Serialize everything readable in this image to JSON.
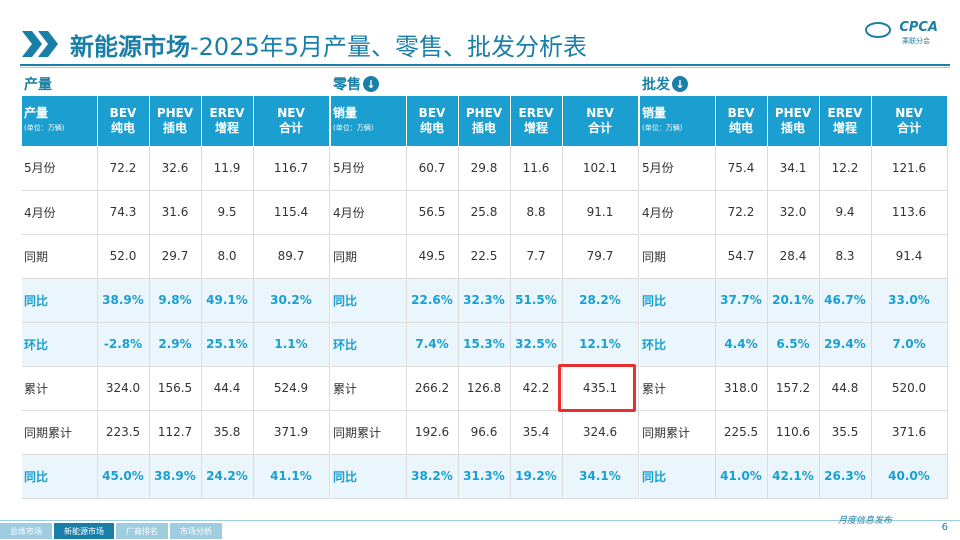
{
  "title": {
    "bold": "新能源市场",
    "rest": "-2025年5月产量、零售、批发分析表"
  },
  "logo": {
    "text": "CPCA",
    "sub": "乘联分会"
  },
  "sections": [
    {
      "label": "产量",
      "has_arrow": false,
      "header_first": "产量",
      "header_unit": "(单位：万辆)",
      "cols": [
        [
          "BEV",
          "纯电"
        ],
        [
          "PHEV",
          "插电"
        ],
        [
          "EREV",
          "增程"
        ],
        [
          "NEV",
          "合计"
        ]
      ],
      "rows": [
        {
          "label": "5月份",
          "values": [
            "72.2",
            "32.6",
            "11.9",
            "116.7"
          ],
          "pct": false
        },
        {
          "label": "4月份",
          "values": [
            "74.3",
            "31.6",
            "9.5",
            "115.4"
          ],
          "pct": false
        },
        {
          "label": "同期",
          "values": [
            "52.0",
            "29.7",
            "8.0",
            "89.7"
          ],
          "pct": false
        },
        {
          "label": "同比",
          "values": [
            "38.9%",
            "9.8%",
            "49.1%",
            "30.2%"
          ],
          "pct": true
        },
        {
          "label": "环比",
          "values": [
            "-2.8%",
            "2.9%",
            "25.1%",
            "1.1%"
          ],
          "pct": true
        },
        {
          "label": "累计",
          "values": [
            "324.0",
            "156.5",
            "44.4",
            "524.9"
          ],
          "pct": false
        },
        {
          "label": "同期累计",
          "values": [
            "223.5",
            "112.7",
            "35.8",
            "371.9"
          ],
          "pct": false
        },
        {
          "label": "同比",
          "values": [
            "45.0%",
            "38.9%",
            "24.2%",
            "41.1%"
          ],
          "pct": true
        }
      ]
    },
    {
      "label": "零售",
      "has_arrow": true,
      "header_first": "销量",
      "header_unit": "(单位：万辆)",
      "cols": [
        [
          "BEV",
          "纯电"
        ],
        [
          "PHEV",
          "插电"
        ],
        [
          "EREV",
          "增程"
        ],
        [
          "NEV",
          "合计"
        ]
      ],
      "rows": [
        {
          "label": "5月份",
          "values": [
            "60.7",
            "29.8",
            "11.6",
            "102.1"
          ],
          "pct": false
        },
        {
          "label": "4月份",
          "values": [
            "56.5",
            "25.8",
            "8.8",
            "91.1"
          ],
          "pct": false
        },
        {
          "label": "同期",
          "values": [
            "49.5",
            "22.5",
            "7.7",
            "79.7"
          ],
          "pct": false
        },
        {
          "label": "同比",
          "values": [
            "22.6%",
            "32.3%",
            "51.5%",
            "28.2%"
          ],
          "pct": true
        },
        {
          "label": "环比",
          "values": [
            "7.4%",
            "15.3%",
            "32.5%",
            "12.1%"
          ],
          "pct": true
        },
        {
          "label": "累计",
          "values": [
            "266.2",
            "126.8",
            "42.2",
            "435.1"
          ],
          "pct": false
        },
        {
          "label": "同期累计",
          "values": [
            "192.6",
            "96.6",
            "35.4",
            "324.6"
          ],
          "pct": false
        },
        {
          "label": "同比",
          "values": [
            "38.2%",
            "31.3%",
            "19.2%",
            "34.1%"
          ],
          "pct": true
        }
      ]
    },
    {
      "label": "批发",
      "has_arrow": true,
      "header_first": "销量",
      "header_unit": "(单位：万辆)",
      "cols": [
        [
          "BEV",
          "纯电"
        ],
        [
          "PHEV",
          "插电"
        ],
        [
          "EREV",
          "增程"
        ],
        [
          "NEV",
          "合计"
        ]
      ],
      "rows": [
        {
          "label": "5月份",
          "values": [
            "75.4",
            "34.1",
            "12.2",
            "121.6"
          ],
          "pct": false
        },
        {
          "label": "4月份",
          "values": [
            "72.2",
            "32.0",
            "9.4",
            "113.6"
          ],
          "pct": false
        },
        {
          "label": "同期",
          "values": [
            "54.7",
            "28.4",
            "8.3",
            "91.4"
          ],
          "pct": false
        },
        {
          "label": "同比",
          "values": [
            "37.7%",
            "20.1%",
            "46.7%",
            "33.0%"
          ],
          "pct": true
        },
        {
          "label": "环比",
          "values": [
            "4.4%",
            "6.5%",
            "29.4%",
            "7.0%"
          ],
          "pct": true
        },
        {
          "label": "累计",
          "values": [
            "318.0",
            "157.2",
            "44.8",
            "520.0"
          ],
          "pct": false
        },
        {
          "label": "同期累计",
          "values": [
            "225.5",
            "110.6",
            "35.5",
            "371.6"
          ],
          "pct": false
        },
        {
          "label": "同比",
          "values": [
            "41.0%",
            "42.1%",
            "26.3%",
            "40.0%"
          ],
          "pct": true
        }
      ]
    }
  ],
  "footer": {
    "tabs": [
      "总体市场",
      "新能源市场",
      "厂商排名",
      "市场分析"
    ],
    "active_tab": 1,
    "brand": "月度信息发布",
    "page": "6"
  },
  "colors": {
    "accent": "#1a7fa8",
    "header": "#1a9fd0",
    "highlight": "#e53030",
    "pct_row_bg": "#eaf6fb"
  }
}
